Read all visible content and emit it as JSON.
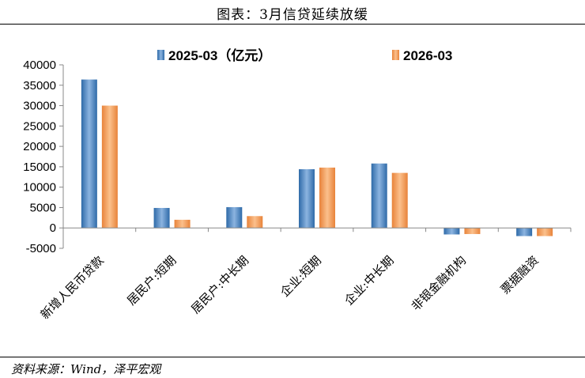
{
  "title": "图表：3月信贷延续放缓",
  "source": "资料来源：Wind，泽平宏观",
  "chart_data": {
    "type": "bar",
    "categories": [
      "新增人民币贷款",
      "居民户:短期",
      "居民户:中长期",
      "企业:短期",
      "企业:中长期",
      "非银金融机构",
      "票据融资"
    ],
    "series": [
      {
        "name": "2025-03（亿元）",
        "color": "#4f81bd",
        "values": [
          36400,
          4900,
          5100,
          14400,
          15800,
          -1600,
          -2000
        ]
      },
      {
        "name": "2026-03",
        "color": "#f79646",
        "values": [
          30000,
          2000,
          2900,
          14800,
          13500,
          -1500,
          -2000
        ]
      }
    ],
    "ylim": [
      -5000,
      40000
    ],
    "yticks": [
      "40000",
      "35000",
      "30000",
      "25000",
      "20000",
      "15000",
      "10000",
      "5000",
      "0",
      "-5000"
    ],
    "grid": false,
    "legend_position": "top"
  }
}
